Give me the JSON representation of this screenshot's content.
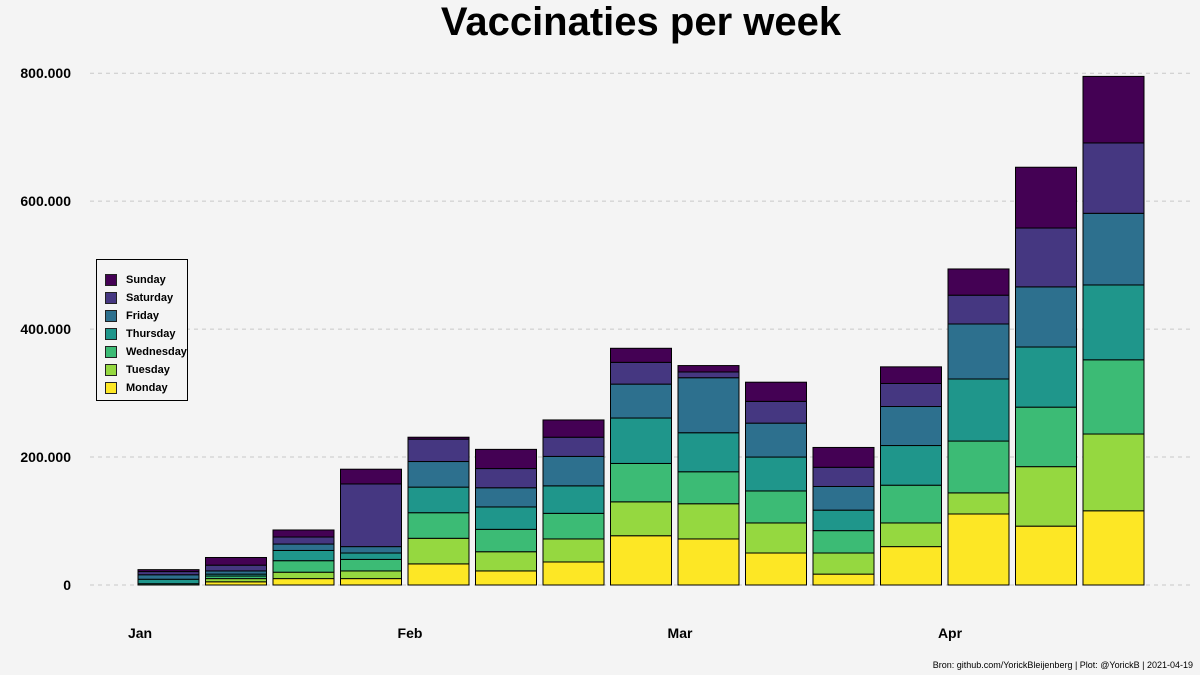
{
  "chart_data": {
    "type": "bar",
    "stacked": true,
    "title": "Vaccinaties per week",
    "xlabel": "",
    "ylabel": "",
    "ylim": [
      0,
      820000
    ],
    "yticks": [
      0,
      200000,
      400000,
      600000,
      800000
    ],
    "ytick_labels": [
      "0",
      "200.000",
      "400.000",
      "600.000",
      "800.000"
    ],
    "xtick_labels": [
      "Jan",
      "Feb",
      "Mar",
      "Apr"
    ],
    "xtick_after_week": [
      0,
      4,
      8,
      12
    ],
    "grid": "horizontal-dashed",
    "legend_position": "left-middle",
    "weeks": 15,
    "series": [
      {
        "name": "Monday",
        "color": "#fde725",
        "values": [
          0,
          5000,
          10000,
          10000,
          33000,
          22000,
          36000,
          77000,
          72000,
          50000,
          17000,
          60000,
          111000,
          92000,
          116000
        ]
      },
      {
        "name": "Tuesday",
        "color": "#95d840",
        "values": [
          0,
          5000,
          10000,
          12000,
          40000,
          30000,
          36000,
          53000,
          55000,
          47000,
          33000,
          37000,
          33000,
          93000,
          120000
        ]
      },
      {
        "name": "Wednesday",
        "color": "#3cbb75",
        "values": [
          2000,
          4000,
          18000,
          18000,
          40000,
          35000,
          40000,
          60000,
          50000,
          50000,
          35000,
          59000,
          81000,
          93000,
          116000
        ]
      },
      {
        "name": "Thursday",
        "color": "#1f968b",
        "values": [
          7000,
          3000,
          16000,
          10000,
          40000,
          35000,
          43000,
          71000,
          61000,
          53000,
          32000,
          62000,
          97000,
          94000,
          117000
        ]
      },
      {
        "name": "Friday",
        "color": "#2d708e",
        "values": [
          7000,
          5000,
          10000,
          10000,
          40000,
          30000,
          46000,
          53000,
          86000,
          53000,
          37000,
          61000,
          86000,
          94000,
          112000
        ]
      },
      {
        "name": "Saturday",
        "color": "#453781",
        "values": [
          5000,
          9000,
          11000,
          98000,
          35000,
          30000,
          30000,
          34000,
          9000,
          34000,
          30000,
          36000,
          45000,
          92000,
          110000
        ]
      },
      {
        "name": "Sunday",
        "color": "#440154",
        "values": [
          3000,
          12000,
          11000,
          23000,
          3000,
          30000,
          27000,
          22000,
          10000,
          30000,
          31000,
          26000,
          41000,
          95000,
          104000
        ]
      }
    ]
  },
  "caption": "Bron: github.com/YorickBleijenberg | Plot: @YorickB  |  2021-04-19"
}
